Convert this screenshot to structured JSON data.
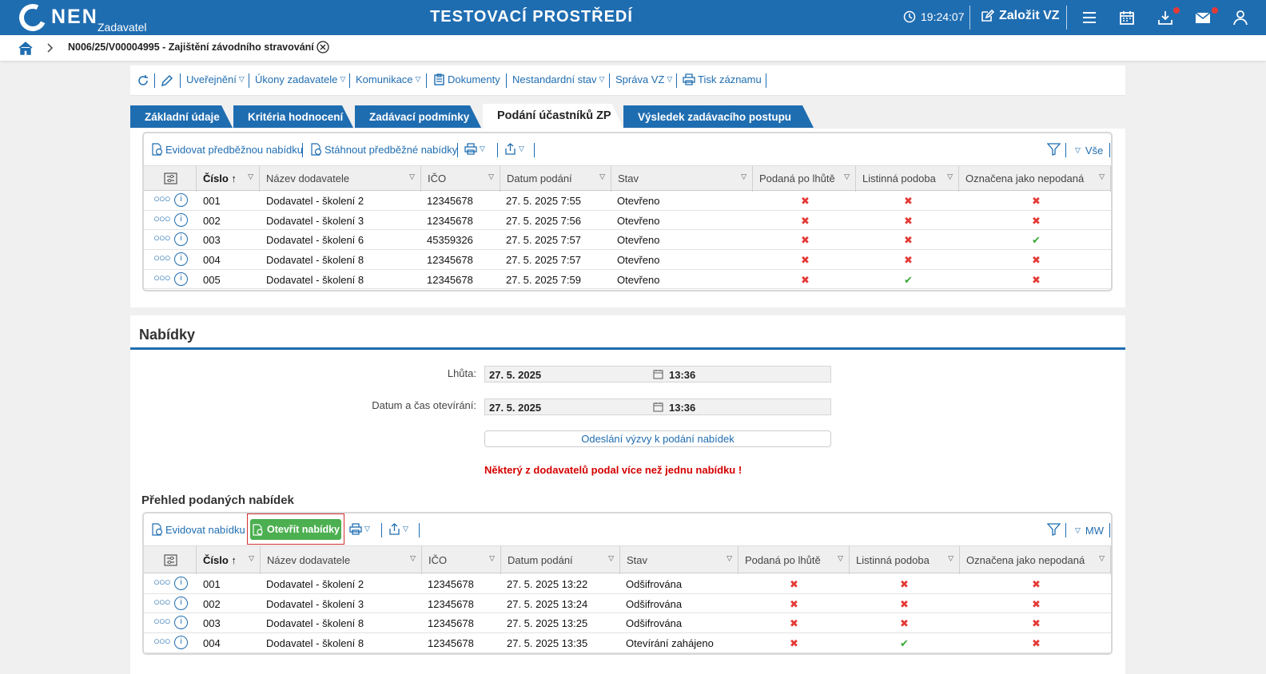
{
  "header": {
    "logo": "NEN",
    "logo_sub": "Zadavatel",
    "env_title": "TESTOVACÍ PROSTŘEDÍ",
    "time": "19:24:07",
    "create_label": "Založit VZ"
  },
  "breadcrumb": {
    "title": "N006/25/V00004995 - Zajištění závodního stravování"
  },
  "actions": {
    "uverejneni": "Uveřejnění",
    "ukony": "Úkony zadavatele",
    "komunikace": "Komunikace",
    "dokumenty": "Dokumenty",
    "nestandardni": "Nestandardní stav",
    "sprava": "Správa VZ",
    "tisk": "Tisk záznamu"
  },
  "tabs": [
    "Základní údaje",
    "Kritéria hodnocení",
    "Zadávací podmínky",
    "Podání účastníků ZP",
    "Výsledek zadávacího postupu"
  ],
  "prelim": {
    "btn_evidovat": "Evidovat předběžnou nabídku",
    "btn_stahnout": "Stáhnout předběžné nabídky",
    "filter_label": "Vše",
    "columns": [
      "Číslo",
      "Název dodavatele",
      "IČO",
      "Datum podání",
      "Stav",
      "Podaná po lhůtě",
      "Listinná podoba",
      "Označena jako nepodaná"
    ],
    "rows": [
      {
        "num": "001",
        "name": "Dodavatel - školení 2",
        "ico": "12345678",
        "date": "27. 5. 2025 7:55",
        "state": "Otevřeno",
        "late": false,
        "paper": false,
        "unsubmitted": false
      },
      {
        "num": "002",
        "name": "Dodavatel - školení 3",
        "ico": "12345678",
        "date": "27. 5. 2025 7:56",
        "state": "Otevřeno",
        "late": false,
        "paper": false,
        "unsubmitted": false
      },
      {
        "num": "003",
        "name": "Dodavatel - školení 6",
        "ico": "45359326",
        "date": "27. 5. 2025 7:57",
        "state": "Otevřeno",
        "late": false,
        "paper": false,
        "unsubmitted": true
      },
      {
        "num": "004",
        "name": "Dodavatel - školení 8",
        "ico": "12345678",
        "date": "27. 5. 2025 7:57",
        "state": "Otevřeno",
        "late": false,
        "paper": false,
        "unsubmitted": false
      },
      {
        "num": "005",
        "name": "Dodavatel - školení 8",
        "ico": "12345678",
        "date": "27. 5. 2025 7:59",
        "state": "Otevřeno",
        "late": false,
        "paper": true,
        "unsubmitted": false
      }
    ]
  },
  "offers": {
    "title": "Nabídky",
    "deadline_label": "Lhůta:",
    "deadline_date": "27. 5. 2025",
    "deadline_time": "13:36",
    "opening_label": "Datum a čas otevírání:",
    "opening_date": "27. 5. 2025",
    "opening_time": "13:36",
    "send_btn": "Odeslání výzvy k podání nabídek",
    "warning": "Některý z dodavatelů podal více než jednu nabídku !",
    "overview_title": "Přehled podaných nabídek",
    "btn_evidovat": "Evidovat nabídku",
    "btn_otevrit": "Otevřít nabídky",
    "filter_label": "MW",
    "columns": [
      "Číslo",
      "Název dodavatele",
      "IČO",
      "Datum podání",
      "Stav",
      "Podaná po lhůtě",
      "Listinná podoba",
      "Označena jako nepodaná"
    ],
    "rows": [
      {
        "num": "001",
        "name": "Dodavatel - školení 2",
        "ico": "12345678",
        "date": "27. 5. 2025 13:22",
        "state": "Odšifrována",
        "late": false,
        "paper": false,
        "unsubmitted": false
      },
      {
        "num": "002",
        "name": "Dodavatel - školení 3",
        "ico": "12345678",
        "date": "27. 5. 2025 13:24",
        "state": "Odšifrována",
        "late": false,
        "paper": false,
        "unsubmitted": false
      },
      {
        "num": "003",
        "name": "Dodavatel - školení 8",
        "ico": "12345678",
        "date": "27. 5. 2025 13:25",
        "state": "Odšifrována",
        "late": false,
        "paper": false,
        "unsubmitted": false
      },
      {
        "num": "004",
        "name": "Dodavatel - školení 8",
        "ico": "12345678",
        "date": "27. 5. 2025 13:35",
        "state": "Otevírání zahájeno",
        "late": false,
        "paper": true,
        "unsubmitted": false
      }
    ]
  }
}
